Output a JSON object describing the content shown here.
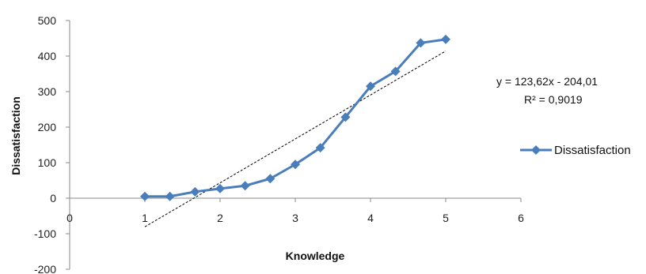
{
  "chart_data": {
    "type": "line",
    "xlabel": "Knowledge",
    "ylabel": "Dissatisfaction",
    "xlim": [
      0,
      6
    ],
    "ylim": [
      -200,
      500
    ],
    "x_ticks": [
      "0",
      "1",
      "2",
      "3",
      "4",
      "5",
      "6"
    ],
    "y_ticks": [
      "500",
      "400",
      "300",
      "200",
      "100",
      "0",
      "-100",
      "-200"
    ],
    "grid": false,
    "legend_position": "right",
    "series": [
      {
        "name": "Dissatisfaction",
        "color": "#4a7ebb",
        "marker": "diamond",
        "x": [
          1,
          1.333,
          1.667,
          2,
          2.333,
          2.667,
          3,
          3.333,
          3.667,
          4,
          4.333,
          4.667,
          5
        ],
        "y": [
          5,
          5,
          18,
          27,
          35,
          55,
          95,
          142,
          228,
          315,
          357,
          437,
          447
        ]
      }
    ],
    "trendline": {
      "type": "linear",
      "slope": 123.62,
      "intercept": -204.01,
      "x_range": [
        1,
        5
      ],
      "style": "dashed",
      "color": "#000000",
      "equation": "y = 123,62x - 204,01",
      "r_squared": "R² = 0,9019"
    }
  }
}
